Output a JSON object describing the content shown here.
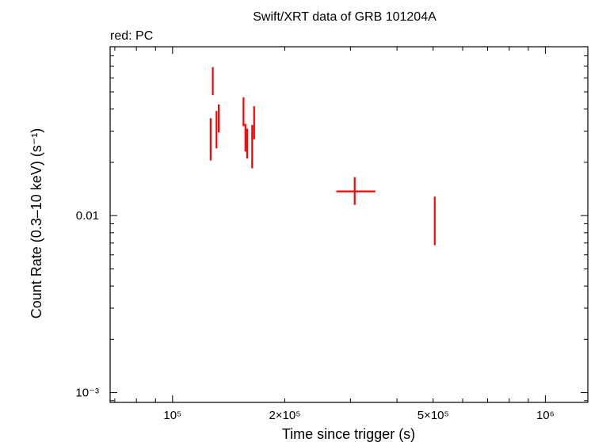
{
  "chart_data": {
    "type": "scatter",
    "title": "Swift/XRT data of GRB 101204A",
    "subtitle": "red: PC",
    "xlabel": "Time since trigger (s)",
    "ylabel": "Count Rate (0.3–10 keV) (s⁻¹)",
    "x_scale": "log",
    "y_scale": "log",
    "xlim": [
      68000,
      1300000
    ],
    "ylim": [
      0.00088,
      0.09
    ],
    "x_tick_labels": [
      {
        "value": 100000,
        "label": "10⁵"
      },
      {
        "value": 200000,
        "label": "2×10⁵"
      },
      {
        "value": 500000,
        "label": "5×10⁵"
      },
      {
        "value": 1000000,
        "label": "10⁶"
      }
    ],
    "y_tick_labels": [
      {
        "value": 0.01,
        "label": "0.01"
      },
      {
        "value": 0.001,
        "label": "10⁻³"
      }
    ],
    "grid": false,
    "series": [
      {
        "name": "PC",
        "color": "#ff0000",
        "points": [
          {
            "x": 126500,
            "x_lo": 126000,
            "x_hi": 127000,
            "y": 0.0275,
            "y_lo": 0.0205,
            "y_hi": 0.0355
          },
          {
            "x": 128200,
            "x_lo": 127700,
            "x_hi": 128700,
            "y": 0.057,
            "y_lo": 0.048,
            "y_hi": 0.069
          },
          {
            "x": 131200,
            "x_lo": 130700,
            "x_hi": 131700,
            "y": 0.0305,
            "y_lo": 0.024,
            "y_hi": 0.039
          },
          {
            "x": 133000,
            "x_lo": 132500,
            "x_hi": 133500,
            "y": 0.0355,
            "y_lo": 0.0295,
            "y_hi": 0.0425
          },
          {
            "x": 155000,
            "x_lo": 154500,
            "x_hi": 155500,
            "y": 0.0395,
            "y_lo": 0.032,
            "y_hi": 0.0465
          },
          {
            "x": 156800,
            "x_lo": 156300,
            "x_hi": 157300,
            "y": 0.0275,
            "y_lo": 0.023,
            "y_hi": 0.033
          },
          {
            "x": 158500,
            "x_lo": 158000,
            "x_hi": 159000,
            "y": 0.0255,
            "y_lo": 0.021,
            "y_hi": 0.031
          },
          {
            "x": 163500,
            "x_lo": 162800,
            "x_hi": 164200,
            "y": 0.0245,
            "y_lo": 0.0185,
            "y_hi": 0.0325
          },
          {
            "x": 165500,
            "x_lo": 165000,
            "x_hi": 166000,
            "y": 0.034,
            "y_lo": 0.027,
            "y_hi": 0.0415
          },
          {
            "x": 308000,
            "x_lo": 275000,
            "x_hi": 350000,
            "y": 0.0137,
            "y_lo": 0.0115,
            "y_hi": 0.0165
          },
          {
            "x": 505000,
            "x_lo": 504000,
            "x_hi": 506000,
            "y": 0.0093,
            "y_lo": 0.0068,
            "y_hi": 0.0128
          }
        ]
      }
    ]
  }
}
